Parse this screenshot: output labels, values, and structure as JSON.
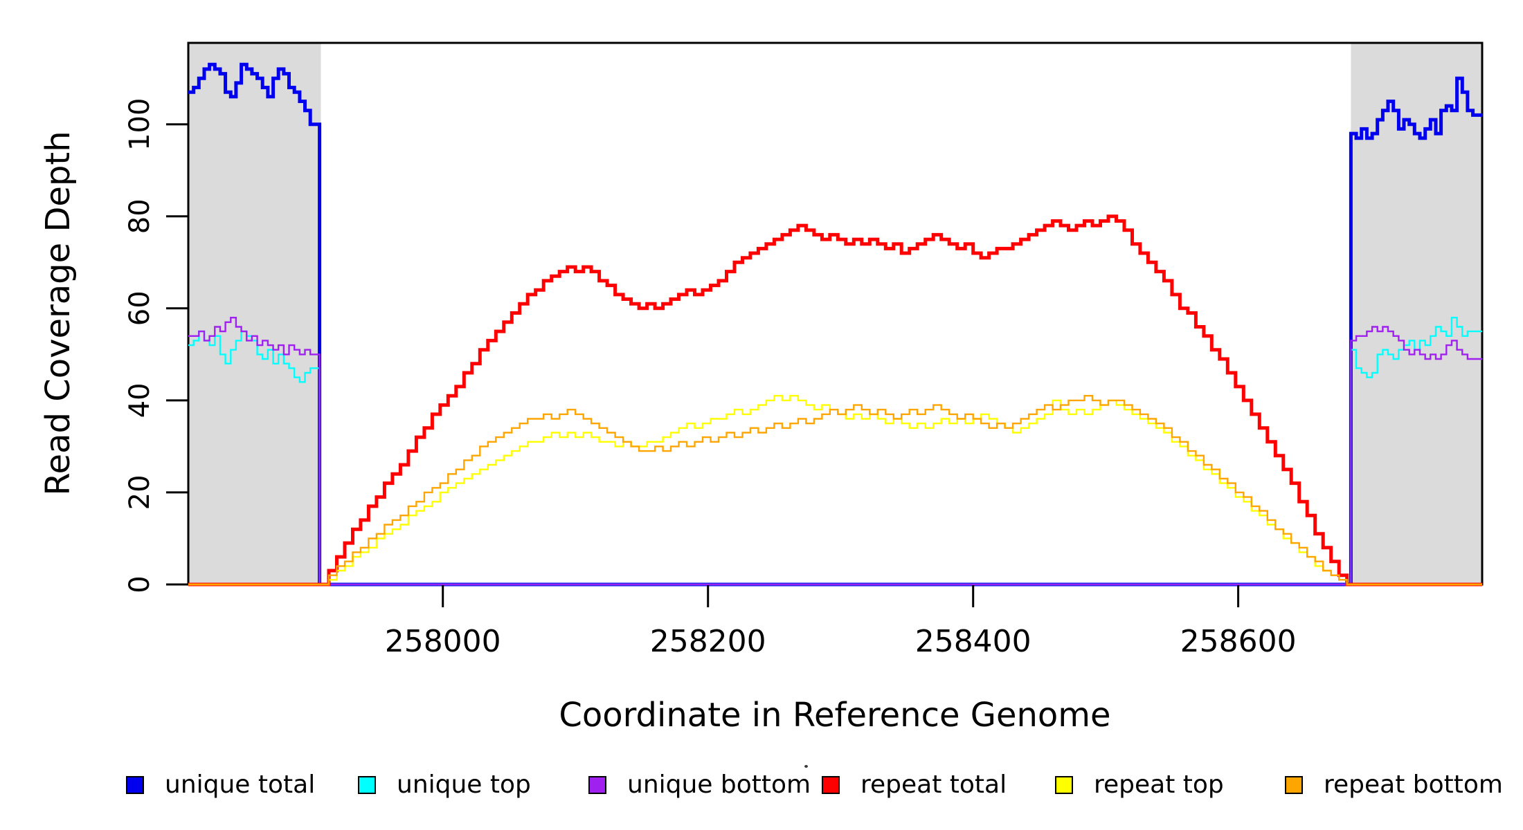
{
  "chart_data": {
    "type": "line",
    "title": "",
    "xlabel": "Coordinate in Reference Genome",
    "ylabel": "Read Coverage Depth",
    "xlim": [
      257808,
      258784
    ],
    "ylim": [
      0,
      117.7
    ],
    "x_tick_values": [
      258000,
      258200,
      258400,
      258600
    ],
    "y_tick_values": [
      0,
      20,
      40,
      60,
      80,
      100
    ],
    "grid": false,
    "plot_bg": "#FFFFFF",
    "axis_color": "#000000",
    "legend_position": "bottom",
    "line_style": "step",
    "shaded_regions": [
      {
        "name": "left-flank",
        "x0": 257808,
        "x1": 257908,
        "color": "#DBDBDB"
      },
      {
        "name": "right-flank",
        "x0": 258685,
        "x1": 258784,
        "color": "#DBDBDB"
      }
    ],
    "series": [
      {
        "id": "unique-total",
        "name": "unique total",
        "color": "#0000EE",
        "width": 5,
        "xend": 258784,
        "segments": [
          {
            "x0": 257808,
            "dx": 4,
            "v": [
              107,
              108,
              110,
              112,
              113,
              112,
              111,
              107,
              106,
              109,
              113,
              112,
              111,
              110,
              108,
              106,
              110,
              112,
              111,
              108,
              107,
              105,
              103,
              100
            ]
          },
          {
            "x0": 257907,
            "dx": 1,
            "v": [
              0
            ]
          },
          {
            "x0": 258685,
            "dx": 4,
            "v": [
              98,
              97,
              99,
              97,
              98,
              101,
              103,
              105,
              103,
              99,
              101,
              100,
              98,
              97,
              99,
              101,
              98,
              103,
              104,
              103,
              110,
              107,
              103,
              102
            ]
          }
        ]
      },
      {
        "id": "unique-top",
        "name": "unique top",
        "color": "#00FFFF",
        "width": 2.4,
        "xend": 258784,
        "segments": [
          {
            "x0": 257808,
            "dx": 4,
            "v": [
              52,
              53,
              55,
              53,
              52,
              54,
              50,
              48,
              51,
              53,
              55,
              54,
              53,
              50,
              49,
              51,
              48,
              50,
              48,
              47,
              45,
              44,
              46,
              47
            ]
          },
          {
            "x0": 257907,
            "dx": 1,
            "v": [
              0
            ]
          },
          {
            "x0": 258685,
            "dx": 4,
            "v": [
              51,
              47,
              46,
              45,
              46,
              50,
              51,
              50,
              49,
              51,
              52,
              53,
              51,
              53,
              52,
              54,
              56,
              55,
              54,
              58,
              56,
              54,
              55,
              55
            ]
          }
        ]
      },
      {
        "id": "unique-bottom",
        "name": "unique bottom",
        "color": "#A020F0",
        "width": 2.4,
        "xend": 258784,
        "segments": [
          {
            "x0": 257808,
            "dx": 4,
            "v": [
              54,
              54,
              55,
              53,
              54,
              56,
              55,
              57,
              58,
              56,
              55,
              53,
              54,
              52,
              53,
              52,
              51,
              52,
              50,
              52,
              51,
              50,
              51,
              50
            ]
          },
          {
            "x0": 257907,
            "dx": 1,
            "v": [
              0
            ]
          },
          {
            "x0": 258685,
            "dx": 4,
            "v": [
              53,
              54,
              54,
              55,
              56,
              55,
              56,
              55,
              54,
              53,
              51,
              50,
              51,
              50,
              49,
              50,
              49,
              50,
              52,
              53,
              51,
              50,
              49,
              49
            ]
          }
        ]
      },
      {
        "id": "repeat-total",
        "name": "repeat total",
        "color": "#FF0000",
        "width": 5,
        "xend": 258784,
        "segments": [
          {
            "x0": 257808,
            "dx": 1,
            "v": [
              0
            ]
          },
          {
            "x0": 257908,
            "dx": 6,
            "v": [
              0,
              3,
              6,
              9,
              12,
              14,
              17,
              19,
              22,
              24,
              26,
              29,
              32,
              34,
              37,
              39,
              41,
              43,
              46,
              48,
              51,
              53,
              55,
              57,
              59,
              61,
              63,
              64,
              66,
              67,
              68,
              69,
              68,
              69,
              68,
              66,
              65,
              63,
              62,
              61,
              60,
              61,
              60,
              61,
              62,
              63,
              64,
              63,
              64,
              65,
              66,
              68,
              70,
              71,
              72,
              73,
              74,
              75,
              76,
              77,
              78,
              77,
              76,
              75,
              76,
              75,
              74,
              75,
              74,
              75,
              74,
              73,
              74,
              72,
              73,
              74,
              75,
              76,
              75,
              74,
              73,
              74,
              72,
              71,
              72,
              73,
              73,
              74,
              75,
              76,
              77,
              78,
              79,
              78,
              77,
              78,
              79,
              78,
              79,
              80,
              79,
              77,
              74,
              72,
              70,
              68,
              66,
              63,
              60,
              59,
              56,
              54,
              51,
              49,
              46,
              43,
              40,
              37,
              34,
              31,
              28,
              25,
              22,
              18,
              15,
              11,
              8,
              5,
              2,
              0
            ]
          },
          {
            "x0": 258690,
            "dx": 1,
            "v": [
              0
            ]
          }
        ]
      },
      {
        "id": "repeat-top",
        "name": "repeat top",
        "color": "#FFFF00",
        "width": 2.4,
        "xend": 258784,
        "segments": [
          {
            "x0": 257808,
            "dx": 1,
            "v": [
              0
            ]
          },
          {
            "x0": 257908,
            "dx": 6,
            "v": [
              0,
              1,
              3,
              4,
              6,
              7,
              8,
              10,
              11,
              12,
              13,
              15,
              16,
              17,
              18,
              20,
              21,
              22,
              23,
              24,
              25,
              26,
              27,
              28,
              29,
              30,
              31,
              31,
              32,
              33,
              32,
              33,
              32,
              33,
              32,
              31,
              31,
              30,
              31,
              30,
              30,
              31,
              31,
              32,
              33,
              34,
              35,
              34,
              35,
              36,
              36,
              37,
              38,
              37,
              38,
              39,
              40,
              41,
              40,
              41,
              40,
              39,
              38,
              39,
              38,
              37,
              36,
              37,
              36,
              37,
              36,
              35,
              36,
              35,
              34,
              35,
              34,
              35,
              36,
              35,
              36,
              35,
              36,
              37,
              36,
              35,
              34,
              33,
              34,
              35,
              36,
              37,
              40,
              38,
              37,
              38,
              37,
              38,
              39,
              40,
              39,
              38,
              37,
              36,
              35,
              34,
              33,
              31,
              30,
              28,
              27,
              25,
              24,
              22,
              21,
              19,
              18,
              16,
              15,
              13,
              12,
              10,
              9,
              7,
              6,
              4,
              3,
              2,
              1,
              0
            ]
          },
          {
            "x0": 258690,
            "dx": 1,
            "v": [
              0
            ]
          }
        ]
      },
      {
        "id": "repeat-bottom",
        "name": "repeat bottom",
        "color": "#FFA500",
        "width": 2.4,
        "xend": 258784,
        "segments": [
          {
            "x0": 257808,
            "dx": 1,
            "v": [
              0
            ]
          },
          {
            "x0": 257908,
            "dx": 6,
            "v": [
              0,
              2,
              4,
              5,
              7,
              8,
              10,
              11,
              13,
              14,
              15,
              17,
              18,
              20,
              21,
              22,
              24,
              25,
              27,
              28,
              30,
              31,
              32,
              33,
              34,
              35,
              36,
              36,
              37,
              36,
              37,
              38,
              37,
              36,
              35,
              34,
              33,
              32,
              31,
              30,
              29,
              29,
              30,
              29,
              30,
              31,
              30,
              31,
              32,
              31,
              32,
              33,
              32,
              33,
              34,
              33,
              34,
              35,
              34,
              35,
              36,
              35,
              36,
              37,
              38,
              37,
              38,
              39,
              38,
              37,
              38,
              37,
              36,
              37,
              38,
              37,
              38,
              39,
              38,
              37,
              36,
              37,
              36,
              35,
              34,
              35,
              34,
              35,
              36,
              37,
              38,
              39,
              38,
              39,
              40,
              40,
              41,
              40,
              39,
              40,
              40,
              39,
              38,
              37,
              36,
              35,
              34,
              32,
              31,
              29,
              28,
              26,
              25,
              23,
              22,
              20,
              19,
              17,
              16,
              14,
              12,
              11,
              9,
              8,
              6,
              5,
              3,
              2,
              1,
              0
            ]
          },
          {
            "x0": 258690,
            "dx": 1,
            "v": [
              0
            ]
          }
        ]
      }
    ]
  }
}
